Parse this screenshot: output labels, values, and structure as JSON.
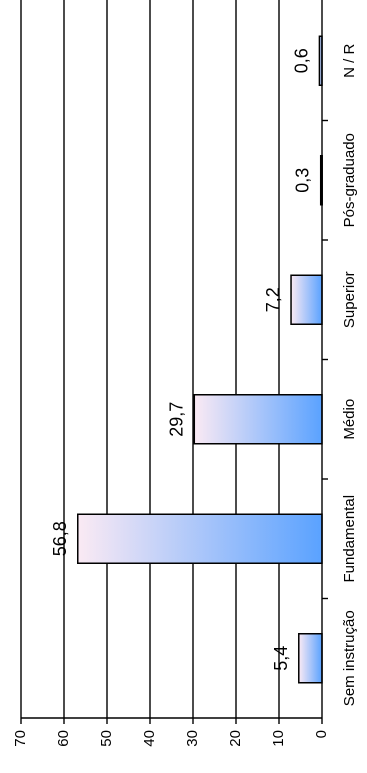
{
  "chart_data": {
    "type": "bar",
    "orientation": "horizontal",
    "categories": [
      "Sem instrução",
      "Fundamental",
      "Médio",
      "Superior",
      "Pós-graduado",
      "N / R"
    ],
    "values": [
      5.4,
      56.8,
      29.7,
      7.2,
      0.3,
      0.6
    ],
    "value_labels": [
      "5,4",
      "56,8",
      "29,7",
      "7,2",
      "0,3",
      "0,6"
    ],
    "xlim": [
      0,
      70
    ],
    "ticks": [
      0,
      10,
      20,
      30,
      40,
      50,
      60,
      70
    ],
    "tick_labels": [
      "0",
      "10",
      "20",
      "30",
      "40",
      "50",
      "60",
      "70"
    ],
    "grid": true,
    "bar_gradient": [
      "#fbeaf4",
      "#5aa2ff"
    ]
  }
}
